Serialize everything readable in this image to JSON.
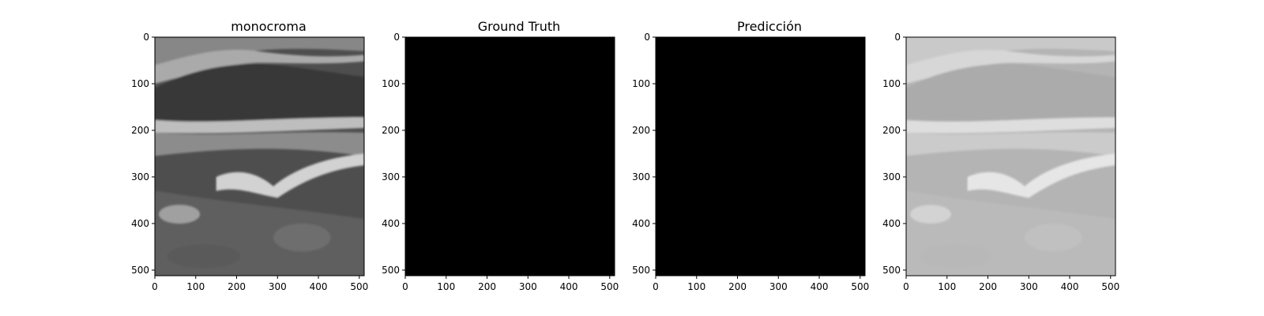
{
  "panels": [
    {
      "title": "monocroma",
      "content": "ultrasound-grayscale",
      "colors": {
        "bg": "#3a3a3a"
      }
    },
    {
      "title": "Ground Truth",
      "content": "mask-black",
      "colors": {
        "bg": "#000000"
      }
    },
    {
      "title": "Predicción",
      "content": "mask-black",
      "colors": {
        "bg": "#000000"
      }
    },
    {
      "title": "",
      "content": "ultrasound-overlay-light",
      "colors": {
        "bg": "#b4b4b4"
      }
    }
  ],
  "axes": {
    "x_ticks": [
      "0",
      "100",
      "200",
      "300",
      "400",
      "500"
    ],
    "y_ticks": [
      "0",
      "100",
      "200",
      "300",
      "400",
      "500"
    ],
    "x_tick_values": [
      0,
      100,
      200,
      300,
      400,
      500
    ],
    "y_tick_values": [
      0,
      100,
      200,
      300,
      400,
      500
    ],
    "xlim": [
      0,
      512
    ],
    "ylim": [
      512,
      0
    ]
  }
}
